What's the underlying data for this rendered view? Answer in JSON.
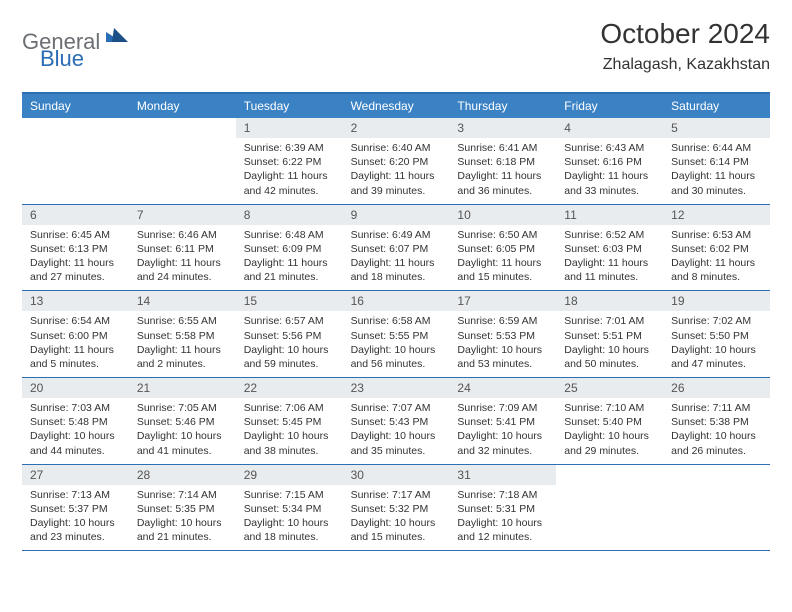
{
  "brand": {
    "word1": "General",
    "word2": "Blue"
  },
  "header": {
    "title": "October 2024",
    "location": "Zhalagash, Kazakhstan"
  },
  "colors": {
    "header_bar": "#3b82c4",
    "border": "#2e6fb3",
    "daynum_bg": "#e8ecef",
    "logo_gray": "#6b6f73",
    "logo_blue": "#2a6db5"
  },
  "dayNames": [
    "Sunday",
    "Monday",
    "Tuesday",
    "Wednesday",
    "Thursday",
    "Friday",
    "Saturday"
  ],
  "weeks": [
    [
      {
        "n": "",
        "sr": "",
        "ss": "",
        "dl": ""
      },
      {
        "n": "",
        "sr": "",
        "ss": "",
        "dl": ""
      },
      {
        "n": "1",
        "sr": "Sunrise: 6:39 AM",
        "ss": "Sunset: 6:22 PM",
        "dl": "Daylight: 11 hours and 42 minutes."
      },
      {
        "n": "2",
        "sr": "Sunrise: 6:40 AM",
        "ss": "Sunset: 6:20 PM",
        "dl": "Daylight: 11 hours and 39 minutes."
      },
      {
        "n": "3",
        "sr": "Sunrise: 6:41 AM",
        "ss": "Sunset: 6:18 PM",
        "dl": "Daylight: 11 hours and 36 minutes."
      },
      {
        "n": "4",
        "sr": "Sunrise: 6:43 AM",
        "ss": "Sunset: 6:16 PM",
        "dl": "Daylight: 11 hours and 33 minutes."
      },
      {
        "n": "5",
        "sr": "Sunrise: 6:44 AM",
        "ss": "Sunset: 6:14 PM",
        "dl": "Daylight: 11 hours and 30 minutes."
      }
    ],
    [
      {
        "n": "6",
        "sr": "Sunrise: 6:45 AM",
        "ss": "Sunset: 6:13 PM",
        "dl": "Daylight: 11 hours and 27 minutes."
      },
      {
        "n": "7",
        "sr": "Sunrise: 6:46 AM",
        "ss": "Sunset: 6:11 PM",
        "dl": "Daylight: 11 hours and 24 minutes."
      },
      {
        "n": "8",
        "sr": "Sunrise: 6:48 AM",
        "ss": "Sunset: 6:09 PM",
        "dl": "Daylight: 11 hours and 21 minutes."
      },
      {
        "n": "9",
        "sr": "Sunrise: 6:49 AM",
        "ss": "Sunset: 6:07 PM",
        "dl": "Daylight: 11 hours and 18 minutes."
      },
      {
        "n": "10",
        "sr": "Sunrise: 6:50 AM",
        "ss": "Sunset: 6:05 PM",
        "dl": "Daylight: 11 hours and 15 minutes."
      },
      {
        "n": "11",
        "sr": "Sunrise: 6:52 AM",
        "ss": "Sunset: 6:03 PM",
        "dl": "Daylight: 11 hours and 11 minutes."
      },
      {
        "n": "12",
        "sr": "Sunrise: 6:53 AM",
        "ss": "Sunset: 6:02 PM",
        "dl": "Daylight: 11 hours and 8 minutes."
      }
    ],
    [
      {
        "n": "13",
        "sr": "Sunrise: 6:54 AM",
        "ss": "Sunset: 6:00 PM",
        "dl": "Daylight: 11 hours and 5 minutes."
      },
      {
        "n": "14",
        "sr": "Sunrise: 6:55 AM",
        "ss": "Sunset: 5:58 PM",
        "dl": "Daylight: 11 hours and 2 minutes."
      },
      {
        "n": "15",
        "sr": "Sunrise: 6:57 AM",
        "ss": "Sunset: 5:56 PM",
        "dl": "Daylight: 10 hours and 59 minutes."
      },
      {
        "n": "16",
        "sr": "Sunrise: 6:58 AM",
        "ss": "Sunset: 5:55 PM",
        "dl": "Daylight: 10 hours and 56 minutes."
      },
      {
        "n": "17",
        "sr": "Sunrise: 6:59 AM",
        "ss": "Sunset: 5:53 PM",
        "dl": "Daylight: 10 hours and 53 minutes."
      },
      {
        "n": "18",
        "sr": "Sunrise: 7:01 AM",
        "ss": "Sunset: 5:51 PM",
        "dl": "Daylight: 10 hours and 50 minutes."
      },
      {
        "n": "19",
        "sr": "Sunrise: 7:02 AM",
        "ss": "Sunset: 5:50 PM",
        "dl": "Daylight: 10 hours and 47 minutes."
      }
    ],
    [
      {
        "n": "20",
        "sr": "Sunrise: 7:03 AM",
        "ss": "Sunset: 5:48 PM",
        "dl": "Daylight: 10 hours and 44 minutes."
      },
      {
        "n": "21",
        "sr": "Sunrise: 7:05 AM",
        "ss": "Sunset: 5:46 PM",
        "dl": "Daylight: 10 hours and 41 minutes."
      },
      {
        "n": "22",
        "sr": "Sunrise: 7:06 AM",
        "ss": "Sunset: 5:45 PM",
        "dl": "Daylight: 10 hours and 38 minutes."
      },
      {
        "n": "23",
        "sr": "Sunrise: 7:07 AM",
        "ss": "Sunset: 5:43 PM",
        "dl": "Daylight: 10 hours and 35 minutes."
      },
      {
        "n": "24",
        "sr": "Sunrise: 7:09 AM",
        "ss": "Sunset: 5:41 PM",
        "dl": "Daylight: 10 hours and 32 minutes."
      },
      {
        "n": "25",
        "sr": "Sunrise: 7:10 AM",
        "ss": "Sunset: 5:40 PM",
        "dl": "Daylight: 10 hours and 29 minutes."
      },
      {
        "n": "26",
        "sr": "Sunrise: 7:11 AM",
        "ss": "Sunset: 5:38 PM",
        "dl": "Daylight: 10 hours and 26 minutes."
      }
    ],
    [
      {
        "n": "27",
        "sr": "Sunrise: 7:13 AM",
        "ss": "Sunset: 5:37 PM",
        "dl": "Daylight: 10 hours and 23 minutes."
      },
      {
        "n": "28",
        "sr": "Sunrise: 7:14 AM",
        "ss": "Sunset: 5:35 PM",
        "dl": "Daylight: 10 hours and 21 minutes."
      },
      {
        "n": "29",
        "sr": "Sunrise: 7:15 AM",
        "ss": "Sunset: 5:34 PM",
        "dl": "Daylight: 10 hours and 18 minutes."
      },
      {
        "n": "30",
        "sr": "Sunrise: 7:17 AM",
        "ss": "Sunset: 5:32 PM",
        "dl": "Daylight: 10 hours and 15 minutes."
      },
      {
        "n": "31",
        "sr": "Sunrise: 7:18 AM",
        "ss": "Sunset: 5:31 PM",
        "dl": "Daylight: 10 hours and 12 minutes."
      },
      {
        "n": "",
        "sr": "",
        "ss": "",
        "dl": ""
      },
      {
        "n": "",
        "sr": "",
        "ss": "",
        "dl": ""
      }
    ]
  ]
}
